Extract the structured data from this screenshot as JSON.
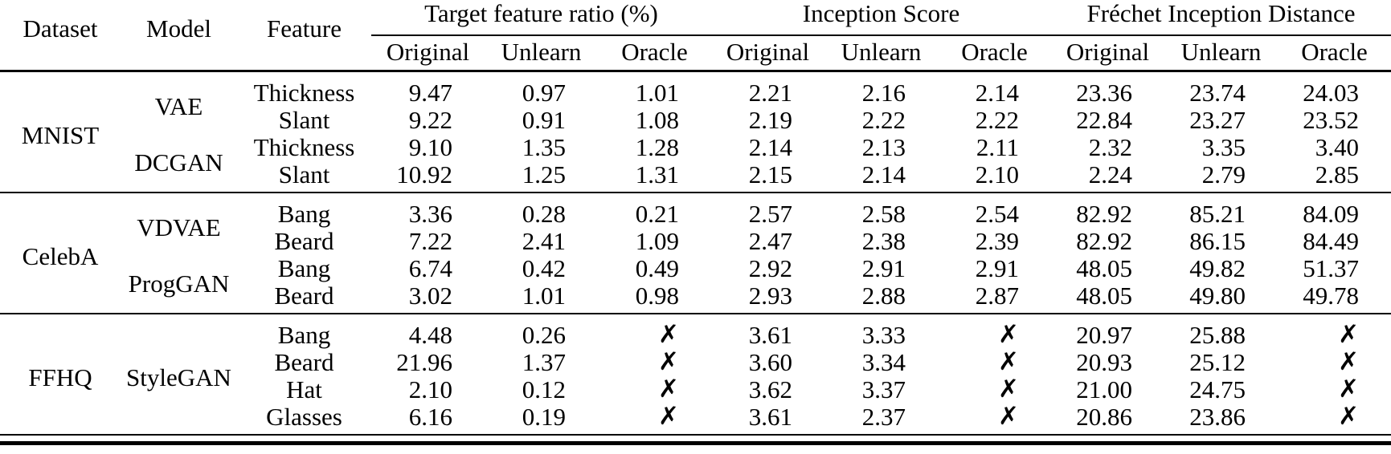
{
  "table": {
    "columns": [
      "Dataset",
      "Model",
      "Feature"
    ],
    "groups": [
      {
        "label": "Target feature ratio (%)",
        "sub": [
          "Original",
          "Unlearn",
          "Oracle"
        ]
      },
      {
        "label": "Inception Score",
        "sub": [
          "Original",
          "Unlearn",
          "Oracle"
        ]
      },
      {
        "label": "Fréchet Inception Distance",
        "sub": [
          "Original",
          "Unlearn",
          "Oracle"
        ]
      }
    ],
    "missing_mark": "✗",
    "text_color": "#000000",
    "background_color": "#ffffff",
    "blocks": [
      {
        "dataset": "MNIST",
        "models": [
          {
            "name": "VAE",
            "rows": [
              {
                "feature": "Thickness",
                "values": [
                  "9.47",
                  "0.97",
                  "1.01",
                  "2.21",
                  "2.16",
                  "2.14",
                  "23.36",
                  "23.74",
                  "24.03"
                ]
              },
              {
                "feature": "Slant",
                "values": [
                  "9.22",
                  "0.91",
                  "1.08",
                  "2.19",
                  "2.22",
                  "2.22",
                  "22.84",
                  "23.27",
                  "23.52"
                ]
              }
            ]
          },
          {
            "name": "DCGAN",
            "rows": [
              {
                "feature": "Thickness",
                "values": [
                  "9.10",
                  "1.35",
                  "1.28",
                  "2.14",
                  "2.13",
                  "2.11",
                  "2.32",
                  "3.35",
                  "3.40"
                ]
              },
              {
                "feature": "Slant",
                "values": [
                  "10.92",
                  "1.25",
                  "1.31",
                  "2.15",
                  "2.14",
                  "2.10",
                  "2.24",
                  "2.79",
                  "2.85"
                ]
              }
            ]
          }
        ]
      },
      {
        "dataset": "CelebA",
        "models": [
          {
            "name": "VDVAE",
            "rows": [
              {
                "feature": "Bang",
                "values": [
                  "3.36",
                  "0.28",
                  "0.21",
                  "2.57",
                  "2.58",
                  "2.54",
                  "82.92",
                  "85.21",
                  "84.09"
                ]
              },
              {
                "feature": "Beard",
                "values": [
                  "7.22",
                  "2.41",
                  "1.09",
                  "2.47",
                  "2.38",
                  "2.39",
                  "82.92",
                  "86.15",
                  "84.49"
                ]
              }
            ]
          },
          {
            "name": "ProgGAN",
            "rows": [
              {
                "feature": "Bang",
                "values": [
                  "6.74",
                  "0.42",
                  "0.49",
                  "2.92",
                  "2.91",
                  "2.91",
                  "48.05",
                  "49.82",
                  "51.37"
                ]
              },
              {
                "feature": "Beard",
                "values": [
                  "3.02",
                  "1.01",
                  "0.98",
                  "2.93",
                  "2.88",
                  "2.87",
                  "48.05",
                  "49.80",
                  "49.78"
                ]
              }
            ]
          }
        ]
      },
      {
        "dataset": "FFHQ",
        "models": [
          {
            "name": "StyleGAN",
            "rows": [
              {
                "feature": "Bang",
                "values": [
                  "4.48",
                  "0.26",
                  "✗",
                  "3.61",
                  "3.33",
                  "✗",
                  "20.97",
                  "25.88",
                  "✗"
                ]
              },
              {
                "feature": "Beard",
                "values": [
                  "21.96",
                  "1.37",
                  "✗",
                  "3.60",
                  "3.34",
                  "✗",
                  "20.93",
                  "25.12",
                  "✗"
                ]
              },
              {
                "feature": "Hat",
                "values": [
                  "2.10",
                  "0.12",
                  "✗",
                  "3.62",
                  "3.37",
                  "✗",
                  "21.00",
                  "24.75",
                  "✗"
                ]
              },
              {
                "feature": "Glasses",
                "values": [
                  "6.16",
                  "0.19",
                  "✗",
                  "3.61",
                  "2.37",
                  "✗",
                  "20.86",
                  "23.86",
                  "✗"
                ]
              }
            ]
          }
        ]
      }
    ]
  },
  "chart_data": {
    "type": "table",
    "title": "",
    "column_groups": [
      "Target feature ratio (%)",
      "Inception Score",
      "Fréchet Inception Distance"
    ],
    "columns": [
      "Dataset",
      "Model",
      "Feature",
      "TFR Original",
      "TFR Unlearn",
      "TFR Oracle",
      "IS Original",
      "IS Unlearn",
      "IS Oracle",
      "FID Original",
      "FID Unlearn",
      "FID Oracle"
    ],
    "rows": [
      [
        "MNIST",
        "VAE",
        "Thickness",
        9.47,
        0.97,
        1.01,
        2.21,
        2.16,
        2.14,
        23.36,
        23.74,
        24.03
      ],
      [
        "MNIST",
        "VAE",
        "Slant",
        9.22,
        0.91,
        1.08,
        2.19,
        2.22,
        2.22,
        22.84,
        23.27,
        23.52
      ],
      [
        "MNIST",
        "DCGAN",
        "Thickness",
        9.1,
        1.35,
        1.28,
        2.14,
        2.13,
        2.11,
        2.32,
        3.35,
        3.4
      ],
      [
        "MNIST",
        "DCGAN",
        "Slant",
        10.92,
        1.25,
        1.31,
        2.15,
        2.14,
        2.1,
        2.24,
        2.79,
        2.85
      ],
      [
        "CelebA",
        "VDVAE",
        "Bang",
        3.36,
        0.28,
        0.21,
        2.57,
        2.58,
        2.54,
        82.92,
        85.21,
        84.09
      ],
      [
        "CelebA",
        "VDVAE",
        "Beard",
        7.22,
        2.41,
        1.09,
        2.47,
        2.38,
        2.39,
        82.92,
        86.15,
        84.49
      ],
      [
        "CelebA",
        "ProgGAN",
        "Bang",
        6.74,
        0.42,
        0.49,
        2.92,
        2.91,
        2.91,
        48.05,
        49.82,
        51.37
      ],
      [
        "CelebA",
        "ProgGAN",
        "Beard",
        3.02,
        1.01,
        0.98,
        2.93,
        2.88,
        2.87,
        48.05,
        49.8,
        49.78
      ],
      [
        "FFHQ",
        "StyleGAN",
        "Bang",
        4.48,
        0.26,
        null,
        3.61,
        3.33,
        null,
        20.97,
        25.88,
        null
      ],
      [
        "FFHQ",
        "StyleGAN",
        "Beard",
        21.96,
        1.37,
        null,
        3.6,
        3.34,
        null,
        20.93,
        25.12,
        null
      ],
      [
        "FFHQ",
        "StyleGAN",
        "Hat",
        2.1,
        0.12,
        null,
        3.62,
        3.37,
        null,
        21.0,
        24.75,
        null
      ],
      [
        "FFHQ",
        "StyleGAN",
        "Glasses",
        6.16,
        0.19,
        null,
        3.61,
        2.37,
        null,
        20.86,
        23.86,
        null
      ]
    ],
    "missing_value_mark": "✗"
  }
}
